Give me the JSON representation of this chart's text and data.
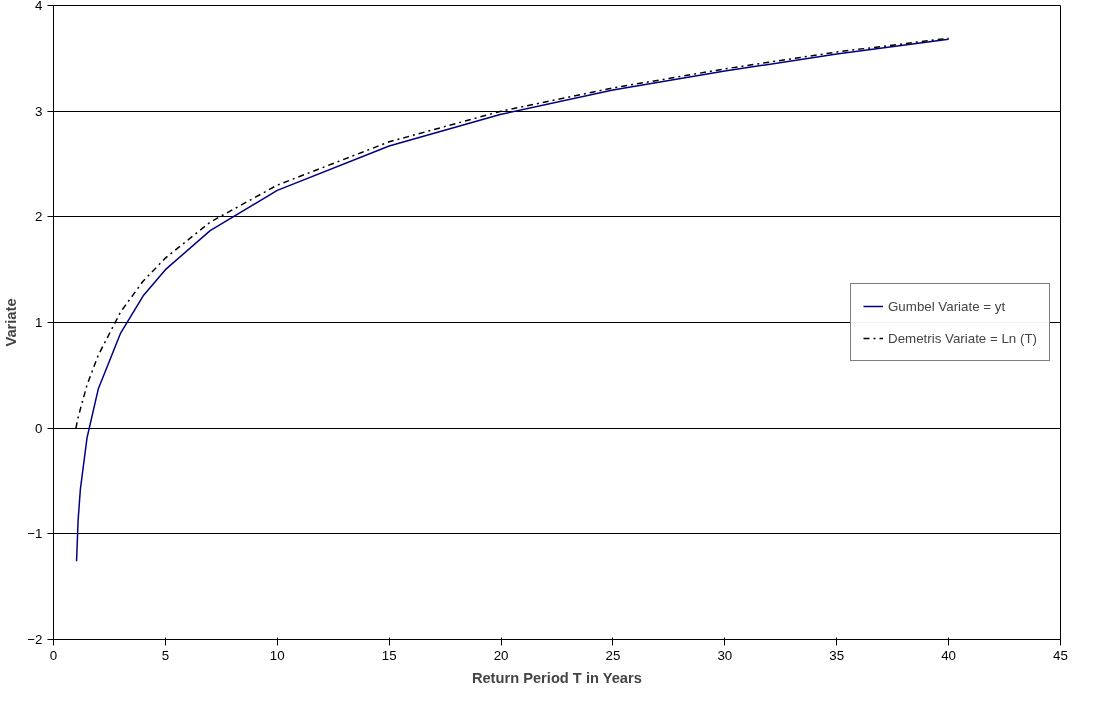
{
  "chart_data": {
    "type": "line",
    "xlabel": "Return Period T in Years",
    "ylabel": "Variate",
    "xlim": [
      0,
      45
    ],
    "xticks": [
      0,
      5,
      10,
      15,
      20,
      25,
      30,
      35,
      40,
      45
    ],
    "ylim": [
      -2,
      4
    ],
    "yticks": [
      -2,
      -1,
      0,
      1,
      2,
      3,
      4
    ],
    "grid": "y",
    "legend": "right",
    "marker": "none",
    "series": [
      {
        "name": "Gumbel Variate = yt",
        "color": "#000080",
        "line_style": "solid",
        "x": [
          1.03,
          1.1,
          1.2,
          1.5,
          2,
          3,
          4,
          5,
          7,
          10,
          15,
          20,
          25,
          30,
          35,
          40
        ],
        "values": [
          -1.26,
          -0.87,
          -0.58,
          -0.09,
          0.37,
          0.9,
          1.25,
          1.5,
          1.87,
          2.25,
          2.67,
          2.97,
          3.2,
          3.38,
          3.54,
          3.68
        ]
      },
      {
        "name": "Demetris Variate = Ln (T)",
        "color": "#000000",
        "line_style": "dashdot",
        "x": [
          1,
          1.1,
          1.2,
          1.5,
          2,
          3,
          4,
          5,
          7,
          10,
          15,
          20,
          25,
          30,
          35,
          40
        ],
        "values": [
          0,
          0.1,
          0.18,
          0.41,
          0.69,
          1.1,
          1.39,
          1.61,
          1.95,
          2.3,
          2.71,
          3.0,
          3.22,
          3.4,
          3.56,
          3.69
        ]
      }
    ]
  }
}
